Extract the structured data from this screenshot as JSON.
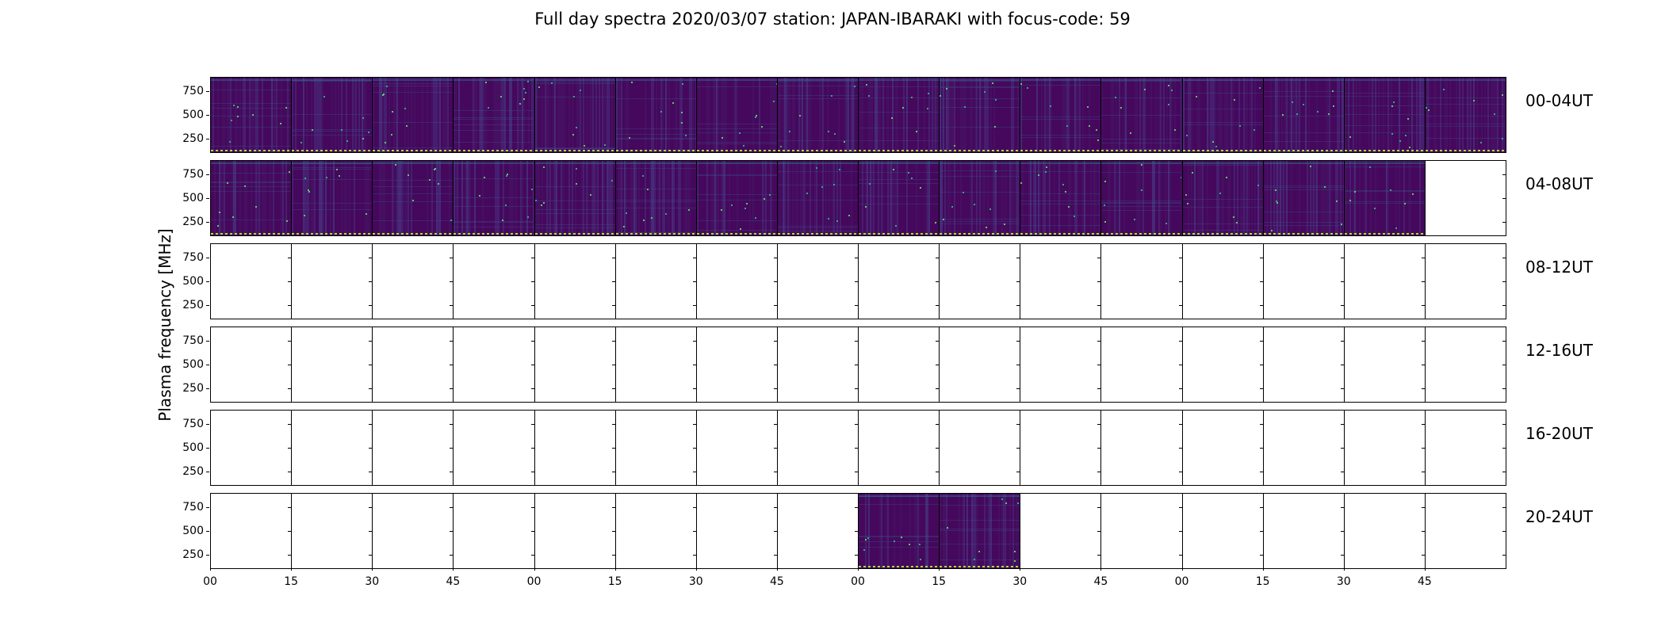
{
  "chart_data": {
    "type": "heatmap",
    "title": "Full day spectra 2020/03/07 station: JAPAN-IBARAKI with focus-code: 59",
    "ylabel": "Plasma frequency [MHz]",
    "yticks": [
      "750",
      "500",
      "250"
    ],
    "ytick_values": [
      750,
      500,
      250
    ],
    "xticks": [
      "00",
      "15",
      "30",
      "45",
      "00",
      "15",
      "30",
      "45",
      "00",
      "15",
      "30",
      "45",
      "00",
      "15",
      "30",
      "45"
    ],
    "panels_per_row": 16,
    "colormap": "viridis",
    "rows": [
      {
        "label": "00-04UT",
        "filled": [
          1,
          1,
          1,
          1,
          1,
          1,
          1,
          1,
          1,
          1,
          1,
          1,
          1,
          1,
          1,
          1
        ]
      },
      {
        "label": "04-08UT",
        "filled": [
          1,
          1,
          1,
          1,
          1,
          1,
          1,
          1,
          1,
          1,
          1,
          1,
          1,
          1,
          1,
          0
        ]
      },
      {
        "label": "08-12UT",
        "filled": [
          0,
          0,
          0,
          0,
          0,
          0,
          0,
          0,
          0,
          0,
          0,
          0,
          0,
          0,
          0,
          0
        ]
      },
      {
        "label": "12-16UT",
        "filled": [
          0,
          0,
          0,
          0,
          0,
          0,
          0,
          0,
          0,
          0,
          0,
          0,
          0,
          0,
          0,
          0
        ]
      },
      {
        "label": "16-20UT",
        "filled": [
          0,
          0,
          0,
          0,
          0,
          0,
          0,
          0,
          0,
          0,
          0,
          0,
          0,
          0,
          0,
          0
        ]
      },
      {
        "label": "20-24UT",
        "filled": [
          0,
          0,
          0,
          0,
          0,
          0,
          0,
          0,
          1,
          1,
          0,
          0,
          0,
          0,
          0,
          0
        ]
      }
    ]
  }
}
